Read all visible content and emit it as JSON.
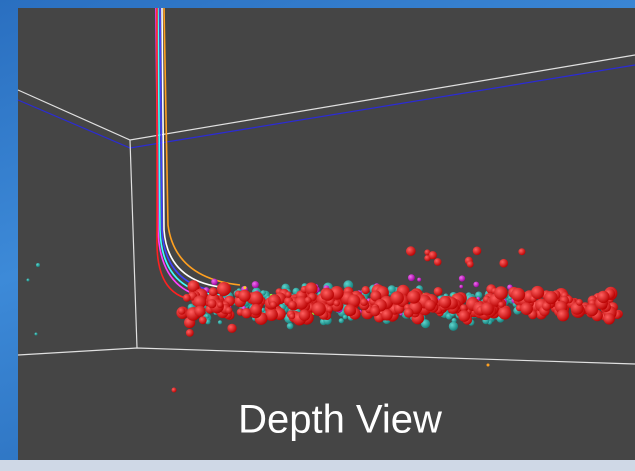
{
  "caption": "Depth View"
}
